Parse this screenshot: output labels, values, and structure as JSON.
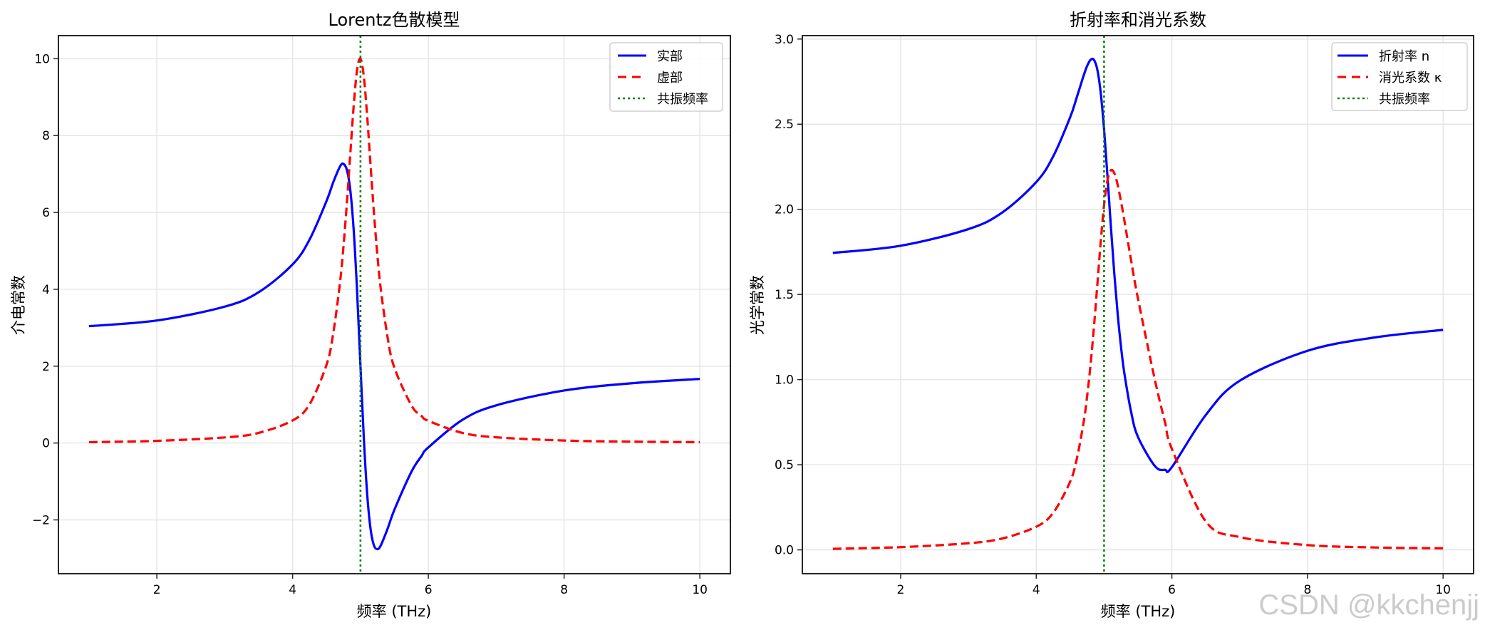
{
  "watermark": "CSDN @kkchenjj",
  "chart_data": [
    {
      "type": "line",
      "title": "Lorentz色散模型",
      "xlabel": "频率 (THz)",
      "ylabel": "介电常数",
      "xlim": [
        0.55,
        10.45
      ],
      "ylim": [
        -3.4,
        10.6
      ],
      "xticks": [
        2,
        4,
        6,
        8,
        10
      ],
      "yticks": [
        -2,
        0,
        2,
        4,
        6,
        8,
        10
      ],
      "ytick_labels": [
        "−2",
        "0",
        "2",
        "4",
        "6",
        "8",
        "10"
      ],
      "grid": true,
      "legend_position": "upper right",
      "vline": {
        "x": 5,
        "label": "共振频率",
        "color": "#008000",
        "style": "dotted"
      },
      "x": [
        1,
        2,
        3,
        3.5,
        4,
        4.25,
        4.5,
        4.6,
        4.7,
        4.75,
        4.8,
        4.85,
        4.9,
        4.95,
        5.0,
        5.05,
        5.1,
        5.15,
        5.2,
        5.25,
        5.3,
        5.4,
        5.5,
        5.75,
        5.9,
        6,
        6.5,
        7,
        8,
        9,
        10
      ],
      "series": [
        {
          "name": "实部",
          "color": "#0000ff",
          "style": "solid",
          "values": [
            3.041,
            3.188,
            3.549,
            3.924,
            4.647,
            5.294,
            6.298,
            6.79,
            7.2,
            7.261,
            7.103,
            6.58,
            5.544,
            3.952,
            2.0,
            0.105,
            -1.356,
            -2.253,
            -2.67,
            -2.761,
            -2.662,
            -2.228,
            -1.736,
            -0.751,
            -0.337,
            -0.115,
            0.6,
            0.98,
            1.366,
            1.556,
            1.668
          ]
        },
        {
          "name": "虚部",
          "color": "#ff0000",
          "style": "dashed",
          "values": [
            0.022,
            0.057,
            0.145,
            0.264,
            0.588,
            1.009,
            2.036,
            2.869,
            4.199,
            5.127,
            6.249,
            7.518,
            8.771,
            9.709,
            10.0,
            9.524,
            8.474,
            7.194,
            5.951,
            4.877,
            3.998,
            2.744,
            1.957,
            0.981,
            0.703,
            0.577,
            0.264,
            0.149,
            0.065,
            0.036,
            0.022
          ]
        }
      ]
    },
    {
      "type": "line",
      "title": "折射率和消光系数",
      "xlabel": "频率 (THz)",
      "ylabel": "光学常数",
      "xlim": [
        0.55,
        10.45
      ],
      "ylim": [
        -0.14,
        3.02
      ],
      "xticks": [
        2,
        4,
        6,
        8,
        10
      ],
      "yticks": [
        0.0,
        0.5,
        1.0,
        1.5,
        2.0,
        2.5,
        3.0
      ],
      "ytick_labels": [
        "0.0",
        "0.5",
        "1.0",
        "1.5",
        "2.0",
        "2.5",
        "3.0"
      ],
      "grid": true,
      "legend_position": "upper right",
      "vline": {
        "x": 5,
        "label": "共振频率",
        "color": "#008000",
        "style": "dotted"
      },
      "x": [
        1,
        2,
        3,
        3.5,
        4,
        4.25,
        4.5,
        4.6,
        4.7,
        4.75,
        4.8,
        4.85,
        4.9,
        4.95,
        5.0,
        5.05,
        5.1,
        5.15,
        5.2,
        5.25,
        5.3,
        5.4,
        5.5,
        5.75,
        5.9,
        6,
        6.5,
        7,
        8,
        9,
        10
      ],
      "series": [
        {
          "name": "折射率 n",
          "color": "#0000ff",
          "style": "solid",
          "values": [
            1.744,
            1.786,
            1.884,
            1.982,
            2.16,
            2.311,
            2.541,
            2.661,
            2.787,
            2.842,
            2.878,
            2.878,
            2.821,
            2.686,
            2.47,
            2.194,
            1.901,
            1.626,
            1.388,
            1.192,
            1.035,
            0.808,
            0.663,
            0.492,
            0.47,
            0.486,
            0.792,
            0.993,
            1.169,
            1.248,
            1.292
          ]
        },
        {
          "name": "消光系数 κ",
          "color": "#ff0000",
          "style": "dashed",
          "values": [
            0.006,
            0.016,
            0.039,
            0.067,
            0.136,
            0.218,
            0.401,
            0.539,
            0.753,
            0.902,
            1.086,
            1.306,
            1.554,
            1.807,
            2.025,
            2.17,
            2.229,
            2.213,
            2.144,
            2.045,
            1.932,
            1.697,
            1.475,
            0.997,
            0.747,
            0.593,
            0.167,
            0.075,
            0.028,
            0.014,
            0.009
          ]
        }
      ]
    }
  ],
  "legend_left": [
    {
      "label": "实部"
    },
    {
      "label": "虚部"
    },
    {
      "label": "共振频率"
    }
  ],
  "legend_right": [
    {
      "label": "折射率 n"
    },
    {
      "label": "消光系数 κ"
    },
    {
      "label": "共振频率"
    }
  ]
}
